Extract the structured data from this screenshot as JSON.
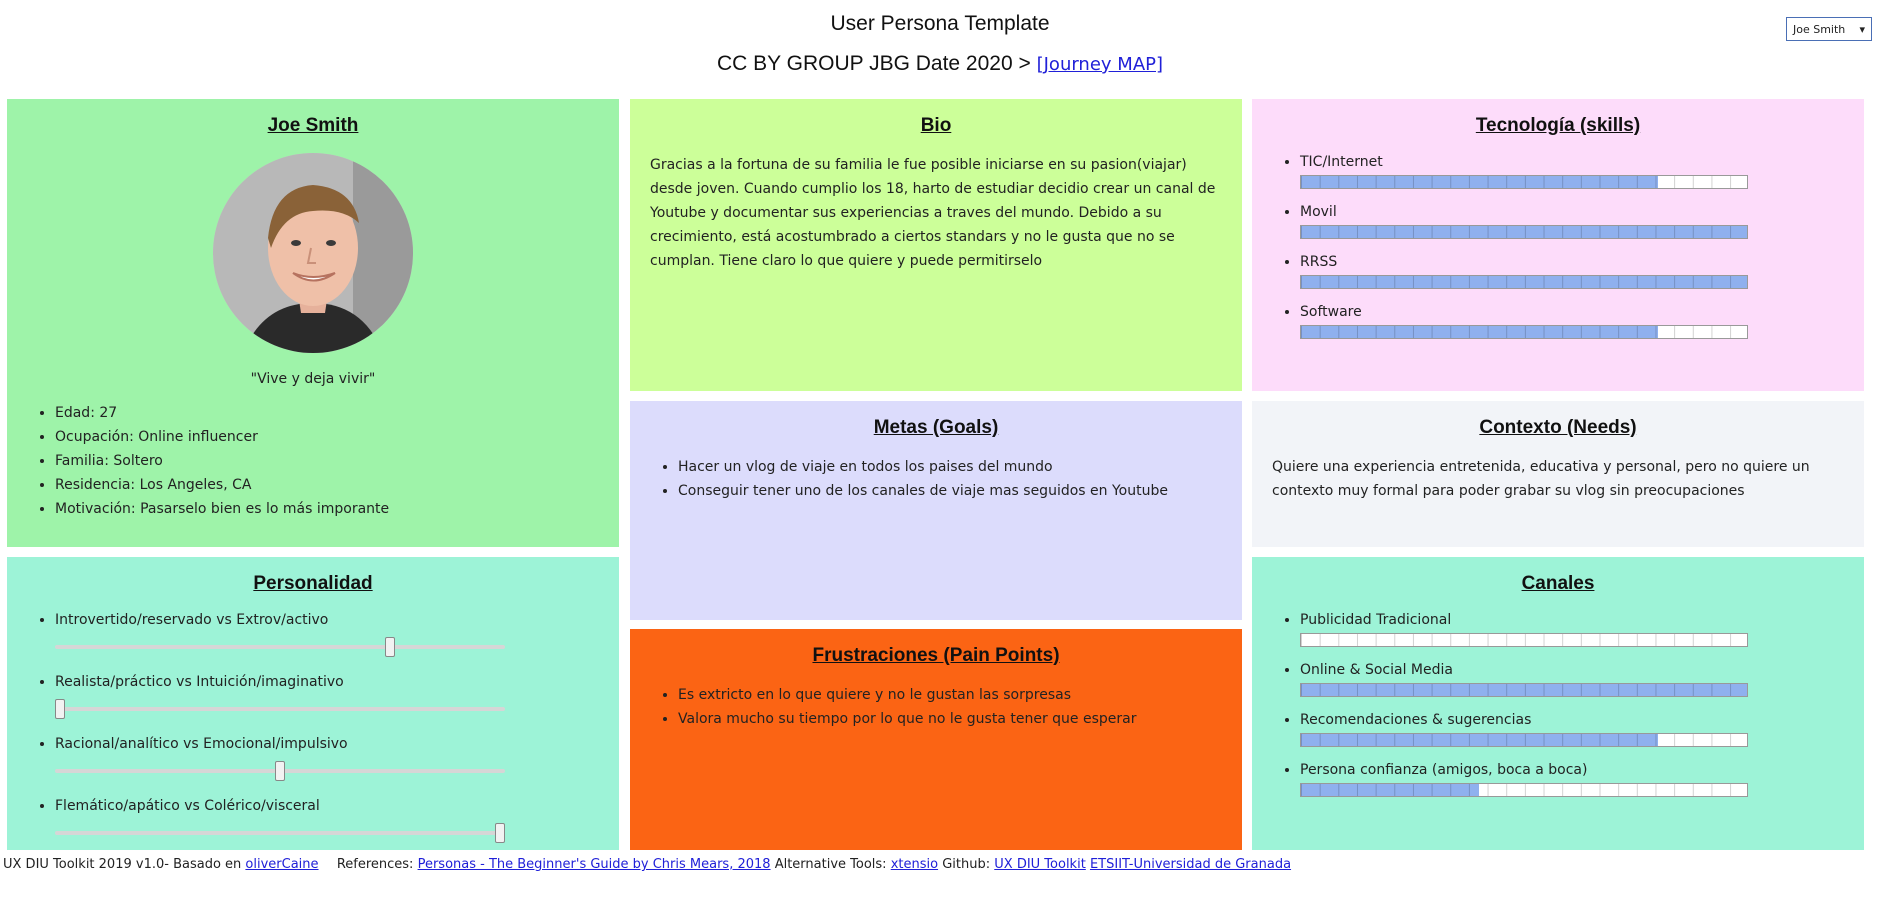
{
  "header": {
    "title": "User Persona Template",
    "subtitle_prefix": "CC BY GROUP JBG Date 2020 >",
    "journey_link": "[Journey MAP]"
  },
  "persona_select": {
    "value": "Joe Smith"
  },
  "persona": {
    "name": "Joe Smith",
    "quote": "\"Vive y deja vivir\"",
    "details": [
      "Edad: 27",
      "Ocupación: Online influencer",
      "Familia: Soltero",
      "Residencia: Los Angeles, CA",
      "Motivación: Pasarselo bien es lo más imporante"
    ]
  },
  "bio": {
    "title": "Bio",
    "text": "Gracias a la fortuna de su familia le fue posible iniciarse en su pasion(viajar) desde joven. Cuando cumplio los 18, harto de estudiar decidio crear un canal de Youtube y documentar sus experiencias a traves del mundo. Debido a su crecimiento, está acostumbrado a ciertos standars y no le gusta que no se cumplan. Tiene claro lo que quiere y puede permitirselo"
  },
  "technology": {
    "title": "Tecnología (skills)",
    "skills": [
      {
        "label": "TIC/Internet",
        "level": 0.8
      },
      {
        "label": "Movil",
        "level": 1.0
      },
      {
        "label": "RRSS",
        "level": 1.0
      },
      {
        "label": "Software",
        "level": 0.8
      }
    ]
  },
  "goals": {
    "title": "Metas (Goals)",
    "items": [
      "Hacer un vlog de viaje en todos los paises del mundo",
      "Conseguir tener uno de los canales de viaje mas seguidos en Youtube"
    ]
  },
  "context": {
    "title": "Contexto (Needs)",
    "text": "Quiere una experiencia entretenida, educativa y personal, pero no quiere un contexto muy formal para poder grabar su vlog sin preocupaciones"
  },
  "personality": {
    "title": "Personalidad",
    "traits": [
      {
        "label": "Introvertido/reservado vs Extrov/activo",
        "value": 0.75
      },
      {
        "label": "Realista/práctico vs Intuición/imaginativo",
        "value": 0.0
      },
      {
        "label": "Racional/analítico vs Emocional/impulsivo",
        "value": 0.5
      },
      {
        "label": "Flemático/apático vs Colérico/visceral",
        "value": 1.0
      }
    ]
  },
  "frustrations": {
    "title": "Frustraciones (Pain Points)",
    "items": [
      "Es extricto en lo que quiere y no le gustan las sorpresas",
      "Valora mucho su tiempo por lo que no le gusta tener que esperar"
    ]
  },
  "channels": {
    "title": "Canales",
    "items": [
      {
        "label": "Publicidad Tradicional",
        "level": 0.0
      },
      {
        "label": "Online & Social Media",
        "level": 1.0
      },
      {
        "label": "Recomendaciones & sugerencias",
        "level": 0.8
      },
      {
        "label": "Persona confianza (amigos, boca a boca)",
        "level": 0.4
      }
    ]
  },
  "footer": {
    "toolkit": "UX DIU Toolkit 2019 v1.0- Basado en",
    "olivercaine": "oliverCaine",
    "references_label": "References:",
    "references_link": "Personas - The Beginner's Guide by Chris Mears, 2018",
    "alt_tools_label": "Alternative Tools:",
    "xtensio": "xtensio",
    "github_label": "Github:",
    "github_link": "UX DIU Toolkit",
    "etsiit_link": "ETSIIT-Universidad de Granada"
  },
  "colors": {
    "persona_bg": "#9ef3a9",
    "bio_bg": "#ccff99",
    "tech_bg": "#fddcfa",
    "goals_bg": "#dcdcfc",
    "context_bg": "#f2f4f8",
    "personality_bg": "#9df3d7",
    "frustrations_bg": "#fb6414",
    "channels_bg": "#9df3d7",
    "bar_fill": "#8fb0ee",
    "link": "#2020d8"
  }
}
